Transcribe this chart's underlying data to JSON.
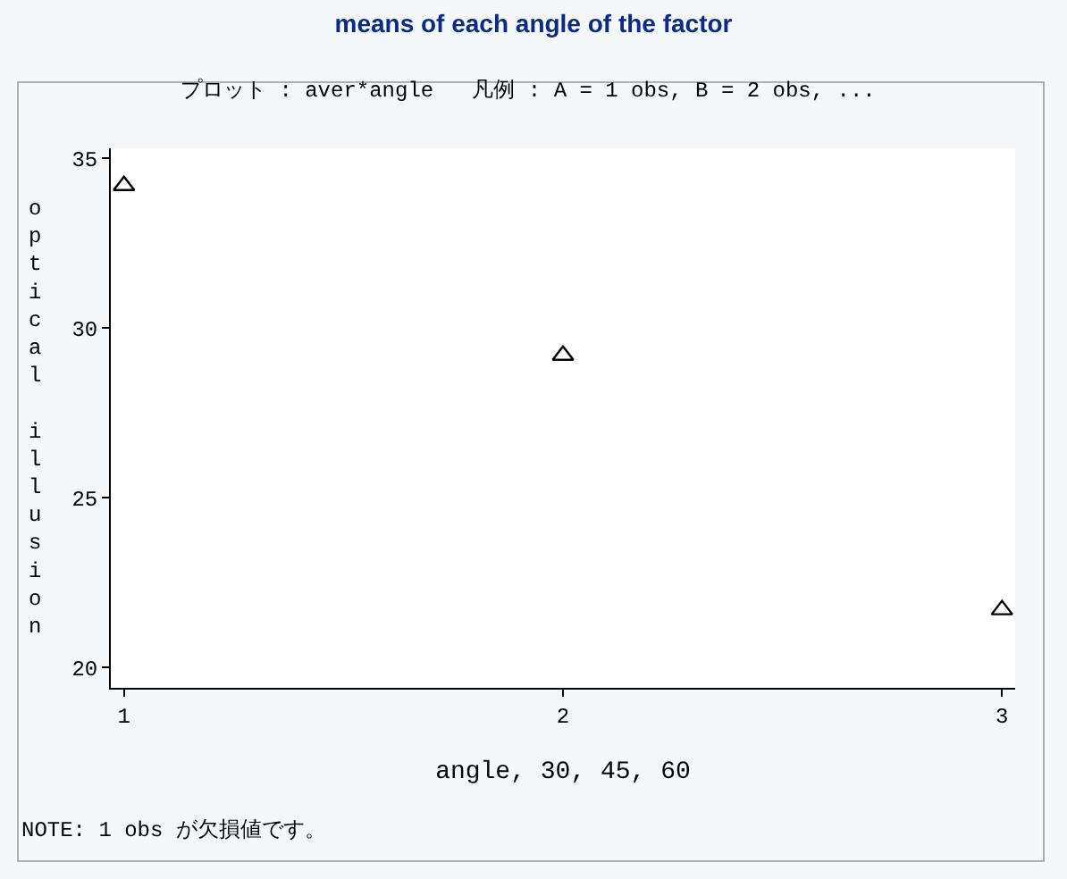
{
  "chart_data": {
    "type": "scatter",
    "title": "means of each angle of the factor",
    "subtitle": "プロット : aver*angle   凡例 : A = 1 obs, B = 2 obs, ...",
    "xlabel": "angle, 30, 45, 60",
    "ylabel": "optical illusion",
    "annotations": [
      "NOTE: 1 obs が欠損値です。"
    ],
    "x": [
      1,
      2,
      3
    ],
    "values": [
      34.2,
      29.2,
      21.7
    ],
    "marker": "triangle",
    "color": "#000000",
    "xlim": [
      0.97,
      3.03
    ],
    "xticks": [
      1,
      2,
      3
    ],
    "ylim": [
      19.4,
      35.3
    ],
    "yticks": [
      20,
      25,
      30,
      35
    ]
  }
}
